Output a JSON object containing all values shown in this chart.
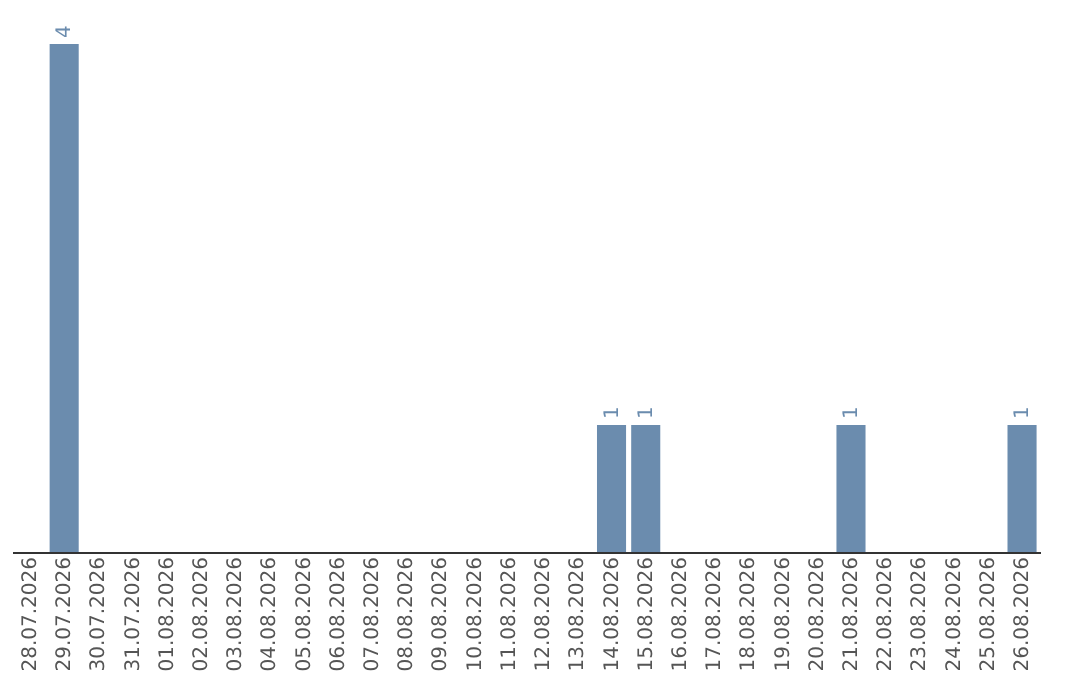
{
  "chart_data": {
    "type": "bar",
    "categories": [
      "28.07.2026",
      "29.07.2026",
      "30.07.2026",
      "31.07.2026",
      "01.08.2026",
      "02.08.2026",
      "03.08.2026",
      "04.08.2026",
      "05.08.2026",
      "06.08.2026",
      "07.08.2026",
      "08.08.2026",
      "09.08.2026",
      "10.08.2026",
      "11.08.2026",
      "12.08.2026",
      "13.08.2026",
      "14.08.2026",
      "15.08.2026",
      "16.08.2026",
      "17.08.2026",
      "18.08.2026",
      "19.08.2026",
      "20.08.2026",
      "21.08.2026",
      "22.08.2026",
      "23.08.2026",
      "24.08.2026",
      "25.08.2026",
      "26.08.2026"
    ],
    "values": [
      0,
      4,
      0,
      0,
      0,
      0,
      0,
      0,
      0,
      0,
      0,
      0,
      0,
      0,
      0,
      0,
      0,
      1,
      1,
      0,
      0,
      0,
      0,
      0,
      1,
      0,
      0,
      0,
      0,
      1
    ],
    "value_labels": [
      null,
      "4",
      null,
      null,
      null,
      null,
      null,
      null,
      null,
      null,
      null,
      null,
      null,
      null,
      null,
      null,
      null,
      "1",
      "1",
      null,
      null,
      null,
      null,
      null,
      "1",
      null,
      null,
      null,
      null,
      "1"
    ],
    "color": "#6b8cae"
  }
}
